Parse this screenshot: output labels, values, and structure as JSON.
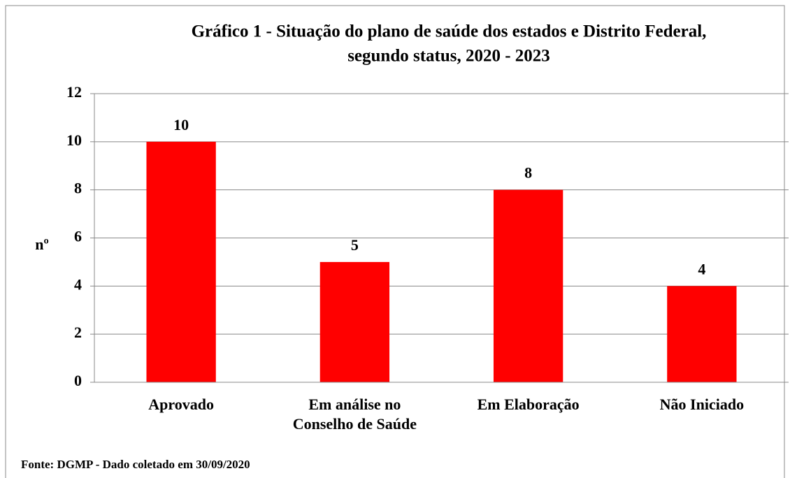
{
  "chart_data": {
    "type": "bar",
    "title": "Gráfico 1 - Situação do plano de saúde dos estados e Distrito Federal, segundo status, 2020 - 2023",
    "title_lines": [
      "Gráfico 1 - Situação do plano de saúde dos estados e Distrito Federal,",
      "segundo status, 2020 - 2023"
    ],
    "y_label": "nº",
    "categories": [
      "Aprovado",
      "Em análise no Conselho de Saúde",
      "Em Elaboração",
      "Não Iniciado"
    ],
    "values": [
      10,
      5,
      8,
      4
    ],
    "color": "#ff0000",
    "ylim": [
      0,
      12
    ],
    "yticks": [
      0,
      2,
      4,
      6,
      8,
      10,
      12
    ],
    "grid": true,
    "source": "Fonte: DGMP - Dado coletado em 30/09/2020"
  }
}
